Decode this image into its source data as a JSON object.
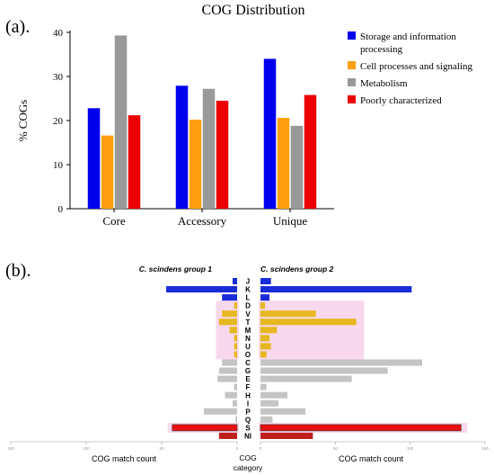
{
  "chart_data": [
    {
      "type": "bar",
      "panel_label": "(a).",
      "title": "COG  Distribution",
      "ylabel": "% COGs",
      "xlabel": "",
      "ylim": [
        0,
        40
      ],
      "yticks": [
        0,
        10,
        20,
        30,
        40
      ],
      "grid": false,
      "legend_position": "right",
      "categories": [
        "Core",
        "Accessory",
        "Unique"
      ],
      "series": [
        {
          "name": "Storage  and  information\nprocessing",
          "color": "#0000ee",
          "values": [
            22.8,
            27.9,
            34.0
          ]
        },
        {
          "name": "Cell processes and signaling",
          "color": "#ffa010",
          "values": [
            16.6,
            20.2,
            20.6
          ]
        },
        {
          "name": "Metabolism",
          "color": "#999999",
          "values": [
            39.3,
            27.2,
            18.8
          ]
        },
        {
          "name": "Poorly  characterized",
          "color": "#ee0000",
          "values": [
            21.2,
            24.5,
            25.8
          ]
        }
      ]
    },
    {
      "type": "bar",
      "orientation": "horizontal-mirrored",
      "panel_label": "(b).",
      "left_group_title": "C. scindens group 1",
      "right_group_title": "C. scindens group 2",
      "left_xlabel": "COG match count",
      "right_xlabel": "COG match count",
      "center_label": "COG\ncategory",
      "x_range": [
        0,
        150
      ],
      "xticks": [
        0,
        50,
        100,
        150
      ],
      "grid": false,
      "categories": [
        "J",
        "K",
        "L",
        "D",
        "V",
        "T",
        "M",
        "N",
        "U",
        "O",
        "C",
        "G",
        "E",
        "F",
        "H",
        "I",
        "P",
        "Q",
        "S",
        "NI"
      ],
      "category_groups": [
        "storage",
        "storage",
        "storage",
        "cell",
        "cell",
        "cell",
        "cell",
        "cell",
        "cell",
        "cell",
        "metabolism",
        "metabolism",
        "metabolism",
        "metabolism",
        "metabolism",
        "metabolism",
        "metabolism",
        "metabolism",
        "poorly",
        "poorly"
      ],
      "group_colors": {
        "storage": "#1a2bd8",
        "cell": "#e6b820",
        "metabolism": "#c4c4c4",
        "poorly": "#e81010",
        "poorly_dark": "#c02020",
        "highlight": "#f8d8ec"
      },
      "group1_values": [
        3,
        47,
        10,
        2,
        10,
        12,
        5,
        2,
        2,
        2,
        10,
        12,
        13,
        2,
        8,
        3,
        22,
        1,
        43,
        12
      ],
      "group2_values": [
        7,
        101,
        6,
        3,
        37,
        64,
        11,
        6,
        7,
        4,
        108,
        85,
        61,
        4,
        18,
        12,
        30,
        8,
        134,
        35
      ]
    }
  ]
}
